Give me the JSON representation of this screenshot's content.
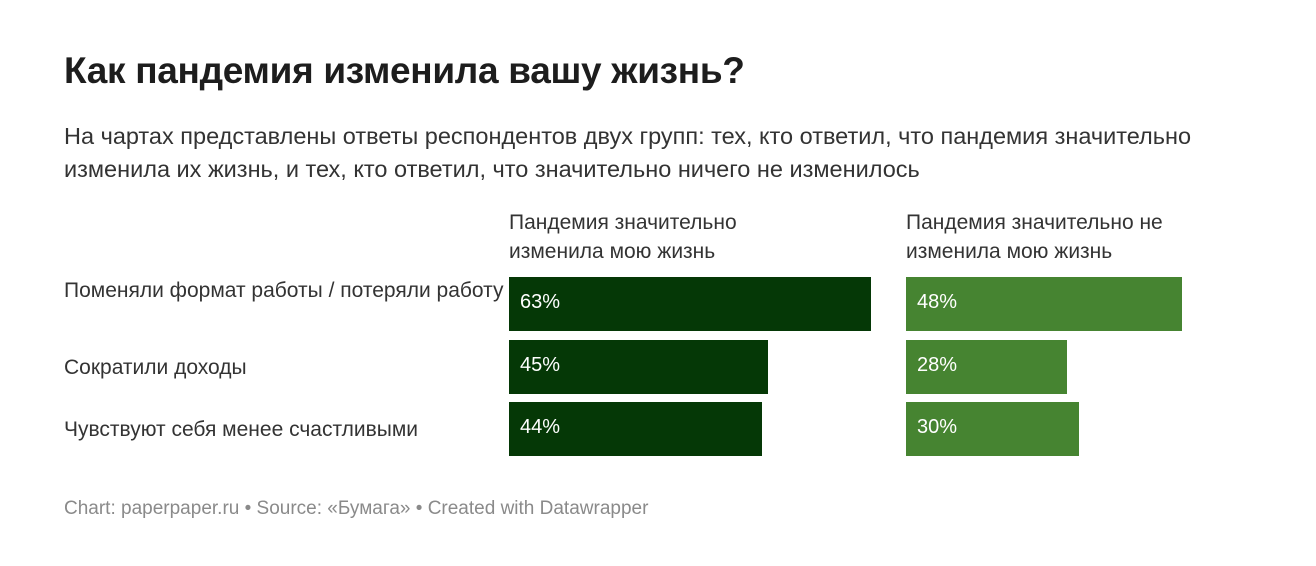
{
  "title": "Как пандемия изменила вашу жизнь?",
  "subtitle": "На чартах представлены ответы респондентов двух групп: тех, кто ответил, что пандемия значительно изменила их жизнь, и тех, кто ответил, что значительно ничего не изменилось",
  "footer": "Chart: paperpaper.ru • Source: «Бумага» • Created with Datawrapper",
  "chart_data": {
    "type": "bar",
    "orientation": "horizontal",
    "categories": [
      "Поменяли формат работы / потеряли работу",
      "Сократили доходы",
      "Чувствуют себя менее счастливыми"
    ],
    "series": [
      {
        "name": "Пандемия значительно изменила мою жизнь",
        "values": [
          63,
          45,
          44
        ],
        "labels": [
          "63%",
          "45%",
          "44%"
        ],
        "color": "#053806"
      },
      {
        "name": "Пандемия значительно не изменила мою жизнь",
        "values": [
          48,
          28,
          30
        ],
        "labels": [
          "48%",
          "28%",
          "30%"
        ],
        "color": "#468431"
      }
    ],
    "unit": "%",
    "xlim": [
      0,
      100
    ]
  }
}
